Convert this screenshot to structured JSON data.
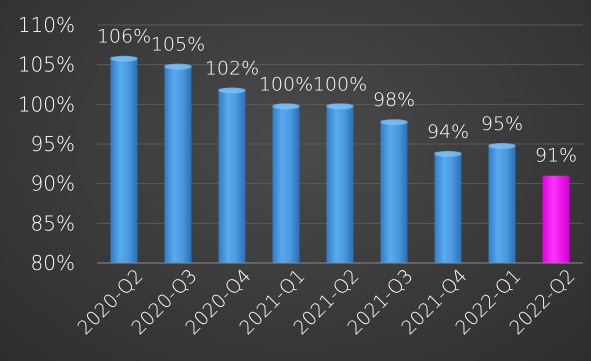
{
  "chart_data": {
    "type": "bar",
    "categories": [
      "2020-Q2",
      "2020-Q3",
      "2020-Q4",
      "2021-Q1",
      "2021-Q2",
      "2021-Q3",
      "2021-Q4",
      "2022-Q1",
      "2022-Q2"
    ],
    "values": [
      106,
      105,
      102,
      100,
      100,
      98,
      94,
      95,
      91
    ],
    "data_labels": [
      "106%",
      "105%",
      "102%",
      "100%",
      "100%",
      "98%",
      "94%",
      "95%",
      "91%"
    ],
    "ylim": [
      80,
      110
    ],
    "yticks": [
      80,
      85,
      90,
      95,
      100,
      105,
      110
    ],
    "ytick_labels": [
      "80%",
      "85%",
      "90%",
      "95%",
      "100%",
      "105%",
      "110%"
    ],
    "grid": true,
    "colors": {
      "default_bar": "#4a9be0",
      "highlight_bar": "#ff00ff",
      "highlight_index": 8
    }
  }
}
